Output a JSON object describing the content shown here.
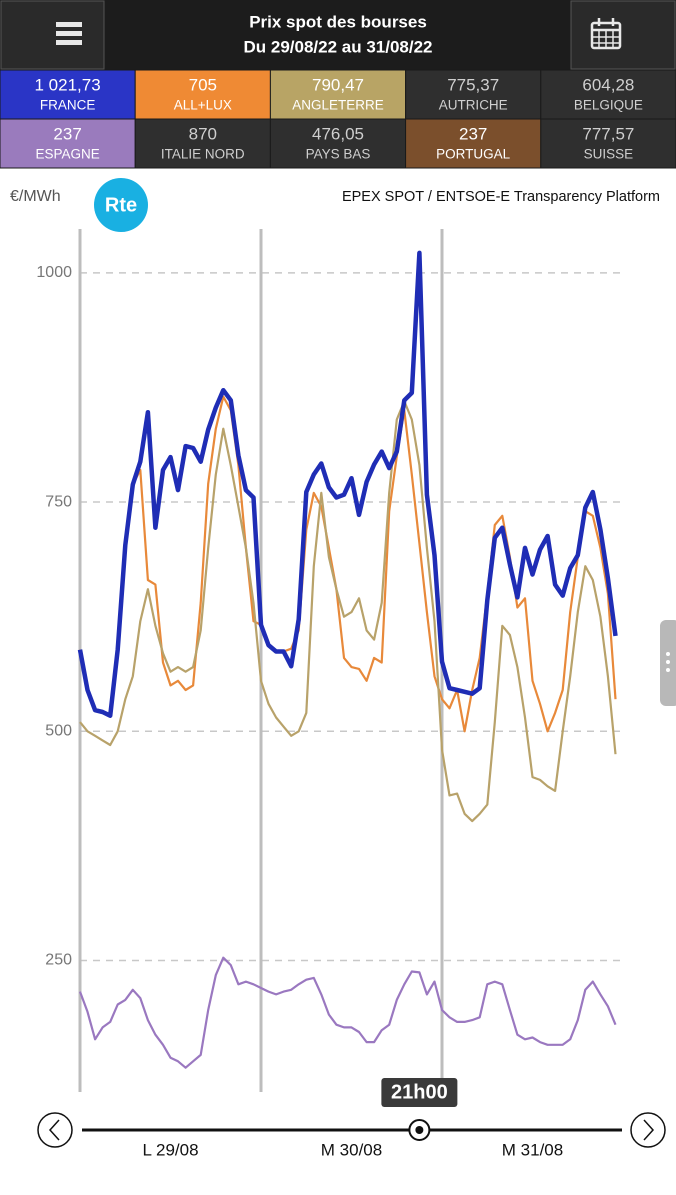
{
  "header": {
    "title": "Prix spot des bourses",
    "subtitle": "Du 29/08/22 au 31/08/22"
  },
  "markets": [
    {
      "value": "1 021,73",
      "name": "FRANCE",
      "color": "#2a35c6"
    },
    {
      "value": "705",
      "name": "ALL+LUX",
      "color": "#ef8a34"
    },
    {
      "value": "790,47",
      "name": "ANGLETERRE",
      "color": "#b8a465"
    },
    {
      "value": "775,37",
      "name": "AUTRICHE",
      "color": "#2f2f2f"
    },
    {
      "value": "604,28",
      "name": "BELGIQUE",
      "color": "#2f2f2f"
    },
    {
      "value": "237",
      "name": "ESPAGNE",
      "color": "#9a7bbd"
    },
    {
      "value": "870",
      "name": "ITALIE NORD",
      "color": "#2f2f2f"
    },
    {
      "value": "476,05",
      "name": "PAYS BAS",
      "color": "#2f2f2f"
    },
    {
      "value": "237",
      "name": "PORTUGAL",
      "color": "#7b4f2c"
    },
    {
      "value": "777,57",
      "name": "SUISSE",
      "color": "#2f2f2f"
    }
  ],
  "unit": "€/MWh",
  "logo": "Rte",
  "source": "EPEX SPOT / ENTSOE-E Transparency Platform",
  "chart_data": {
    "type": "line",
    "x": [
      0,
      1,
      2,
      3,
      4,
      5,
      6,
      7,
      8,
      9,
      10,
      11,
      12,
      13,
      14,
      15,
      16,
      17,
      18,
      19,
      20,
      21,
      22,
      23,
      24,
      25,
      26,
      27,
      28,
      29,
      30,
      31,
      32,
      33,
      34,
      35,
      36,
      37,
      38,
      39,
      40,
      41,
      42,
      43,
      44,
      45,
      46,
      47,
      48,
      49,
      50,
      51,
      52,
      53,
      54,
      55,
      56,
      57,
      58,
      59,
      60,
      61,
      62,
      63,
      64,
      65,
      66,
      67,
      68,
      69,
      70,
      71
    ],
    "series": [
      {
        "color": "#e8893a",
        "values": [
          589,
          545,
          523,
          521,
          517,
          589,
          703,
          769,
          785,
          665,
          660,
          575,
          550,
          555,
          545,
          550,
          640,
          770,
          830,
          865,
          850,
          790,
          700,
          620,
          616,
          594,
          587,
          587,
          590,
          610,
          720,
          760,
          745,
          700,
          655,
          580,
          570,
          568,
          555,
          580,
          575,
          740,
          800,
          850,
          780,
          705,
          630,
          560,
          535,
          525,
          545,
          500,
          545,
          580,
          650,
          725,
          735,
          690,
          635,
          645,
          555,
          530,
          500,
          520,
          545,
          630,
          690,
          740,
          735,
          700,
          650,
          535
        ]
      },
      {
        "color": "#b8a26a",
        "values": [
          510,
          500,
          495,
          490,
          485,
          500,
          535,
          560,
          620,
          655,
          615,
          585,
          565,
          570,
          565,
          570,
          610,
          700,
          780,
          830,
          790,
          745,
          700,
          640,
          555,
          530,
          515,
          505,
          495,
          500,
          520,
          680,
          760,
          690,
          655,
          625,
          630,
          645,
          610,
          600,
          640,
          760,
          840,
          860,
          840,
          790.47,
          700,
          620,
          480,
          430,
          432,
          410,
          402,
          410,
          420,
          510,
          615,
          605,
          570,
          515,
          450,
          447,
          440,
          435,
          500,
          560,
          630,
          680,
          665,
          625,
          560,
          475
        ]
      },
      {
        "color": "#9a78c0",
        "values": [
          216,
          194,
          164,
          177,
          183,
          202,
          207,
          218,
          209,
          185,
          169,
          158,
          144,
          140,
          133,
          140,
          147,
          196,
          234,
          253,
          245,
          224,
          227,
          224,
          220,
          216,
          213,
          216,
          218,
          224,
          229,
          231,
          213,
          191,
          180,
          177,
          177,
          172,
          161,
          161,
          174,
          180,
          207,
          224,
          238,
          237,
          213,
          227,
          196,
          188,
          183,
          183,
          185,
          188,
          224,
          227,
          224,
          196,
          169,
          164,
          166,
          161,
          158,
          158,
          158,
          164,
          185,
          218,
          227,
          213,
          200,
          180
        ]
      },
      {
        "color": "#1f2db5",
        "values": [
          589,
          545,
          523,
          521,
          517,
          589,
          703,
          769,
          794,
          848,
          722,
          785,
          799,
          763,
          811,
          809,
          794,
          829,
          853,
          872,
          861,
          801,
          763,
          755,
          616,
          594,
          587,
          587,
          571,
          622,
          761,
          780,
          792,
          766,
          755,
          758,
          776,
          736,
          772,
          791,
          805,
          787,
          805,
          861,
          869,
          1021.73,
          758,
          692,
          576,
          547,
          545,
          543,
          541,
          547,
          643,
          711,
          722,
          682,
          646,
          700,
          671,
          698,
          713,
          660,
          648,
          678,
          692,
          744,
          761,
          720,
          667,
          604
        ]
      }
    ],
    "xlim": [
      0,
      72
    ],
    "ylim": [
      100,
      1050
    ],
    "yticks": [
      250,
      500,
      750,
      1000
    ],
    "grid": true,
    "day_lines": [
      0,
      24,
      48
    ],
    "xticks": [
      {
        "value": 12,
        "label": "L 29/08"
      },
      {
        "value": 36,
        "label": "M 30/08"
      },
      {
        "value": 60,
        "label": "M 31/08"
      }
    ],
    "cursor": {
      "x": 45,
      "label": "21h00"
    }
  }
}
